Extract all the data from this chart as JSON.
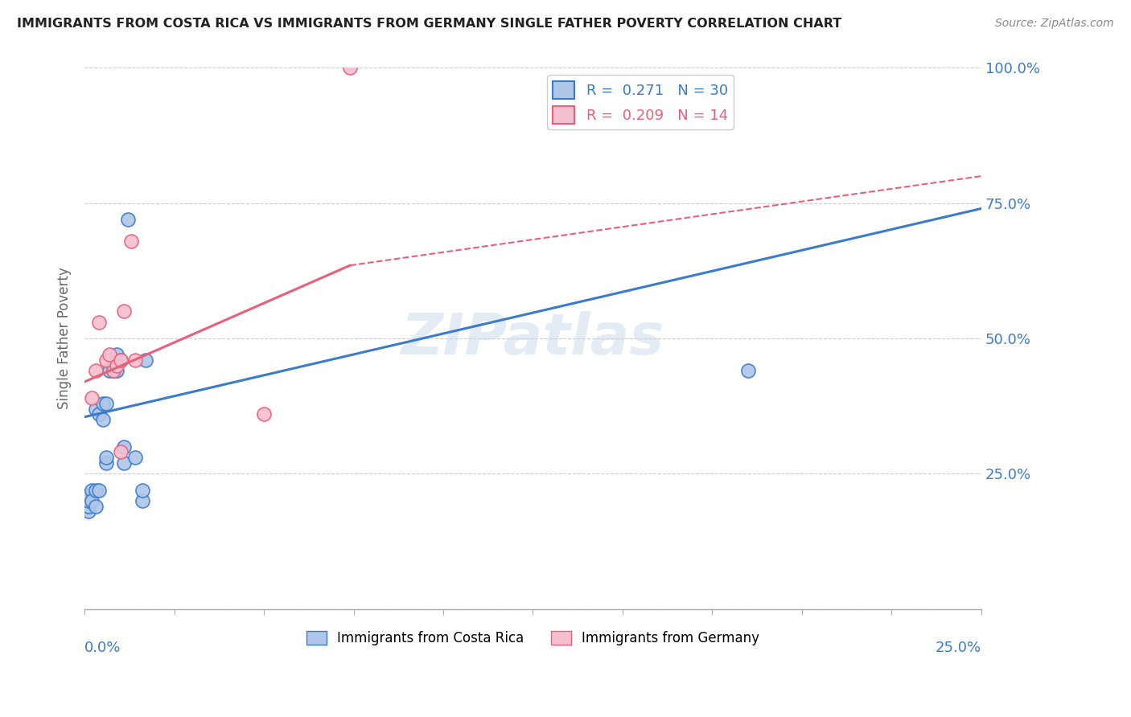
{
  "title": "IMMIGRANTS FROM COSTA RICA VS IMMIGRANTS FROM GERMANY SINGLE FATHER POVERTY CORRELATION CHART",
  "source": "Source: ZipAtlas.com",
  "ylabel": "Single Father Poverty",
  "legend1_label": "R =  0.271   N = 30",
  "legend2_label": "R =  0.209   N = 14",
  "watermark": "ZIPatlas",
  "costa_rica_color": "#aec6e8",
  "germany_color": "#f4bfcf",
  "line_costa_rica_color": "#3a7bcc",
  "line_germany_color": "#e8607a",
  "xlim": [
    0.0,
    0.25
  ],
  "ylim": [
    0.0,
    1.0
  ],
  "costa_rica_x": [
    0.001,
    0.001,
    0.001,
    0.001,
    0.002,
    0.002,
    0.003,
    0.003,
    0.003,
    0.004,
    0.004,
    0.005,
    0.005,
    0.006,
    0.006,
    0.006,
    0.007,
    0.008,
    0.008,
    0.009,
    0.009,
    0.01,
    0.011,
    0.011,
    0.012,
    0.014,
    0.016,
    0.016,
    0.017,
    0.185
  ],
  "costa_rica_y": [
    0.18,
    0.19,
    0.2,
    0.21,
    0.22,
    0.2,
    0.19,
    0.22,
    0.37,
    0.22,
    0.36,
    0.35,
    0.38,
    0.27,
    0.28,
    0.38,
    0.44,
    0.44,
    0.45,
    0.44,
    0.47,
    0.46,
    0.27,
    0.3,
    0.72,
    0.28,
    0.2,
    0.22,
    0.46,
    0.44
  ],
  "germany_x": [
    0.002,
    0.003,
    0.004,
    0.006,
    0.007,
    0.008,
    0.009,
    0.01,
    0.01,
    0.011,
    0.013,
    0.014,
    0.05,
    0.074
  ],
  "germany_y": [
    0.39,
    0.44,
    0.53,
    0.46,
    0.47,
    0.44,
    0.45,
    0.29,
    0.46,
    0.55,
    0.68,
    0.46,
    0.36,
    1.0
  ],
  "costa_rica_line_x": [
    0.0,
    0.25
  ],
  "costa_rica_line_y": [
    0.355,
    0.74
  ],
  "germany_solid_line_x": [
    0.0,
    0.074
  ],
  "germany_solid_line_y": [
    0.42,
    0.635
  ],
  "germany_dash_line_x": [
    0.074,
    0.25
  ],
  "germany_dash_line_y": [
    0.635,
    0.8
  ]
}
